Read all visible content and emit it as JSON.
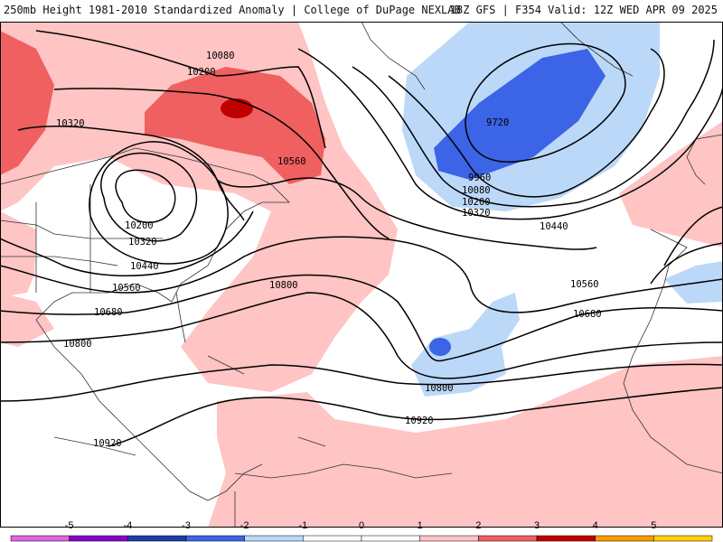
{
  "header": {
    "left_title": "250mb Height 1981-2010 Standardized Anomaly | College of DuPage NEXLAB",
    "right_title": "18Z GFS | F354 Valid: 12Z WED APR 09 2025"
  },
  "contour_labels": [
    {
      "key": "c10080a",
      "text": "10080"
    },
    {
      "key": "c10200a",
      "text": "10200"
    },
    {
      "key": "c10320a",
      "text": "10320"
    },
    {
      "key": "c10560a",
      "text": "10560"
    },
    {
      "key": "c10200b",
      "text": "10200"
    },
    {
      "key": "c10320b",
      "text": "10320"
    },
    {
      "key": "c10440a",
      "text": "10440"
    },
    {
      "key": "c10560b",
      "text": "10560"
    },
    {
      "key": "c10680a",
      "text": "10680"
    },
    {
      "key": "c10800a",
      "text": "10800"
    },
    {
      "key": "c10800b",
      "text": "10800"
    },
    {
      "key": "c10920a",
      "text": "10920"
    },
    {
      "key": "c10920b",
      "text": "10920"
    },
    {
      "key": "c9720",
      "text": "9720"
    },
    {
      "key": "c9960",
      "text": "9960"
    },
    {
      "key": "c10080b",
      "text": "10080"
    },
    {
      "key": "c10200c",
      "text": "10200"
    },
    {
      "key": "c10320c",
      "text": "10320"
    },
    {
      "key": "c10440b",
      "text": "10440"
    },
    {
      "key": "c10560c",
      "text": "10560"
    },
    {
      "key": "c10680b",
      "text": "10680"
    },
    {
      "key": "c10800c",
      "text": "10800"
    }
  ],
  "colorbar": {
    "ticks": [
      "-5",
      "-4",
      "-3",
      "-2",
      "-1",
      "0",
      "1",
      "2",
      "3",
      "4",
      "5"
    ],
    "colors": [
      "#e066e0",
      "#8a00c8",
      "#1c3ca8",
      "#3c64e6",
      "#bcd8f8",
      "#ffffff",
      "#ffffff",
      "#ffc4c4",
      "#f06060",
      "#c00000",
      "#ff9a00",
      "#ffd000"
    ]
  }
}
